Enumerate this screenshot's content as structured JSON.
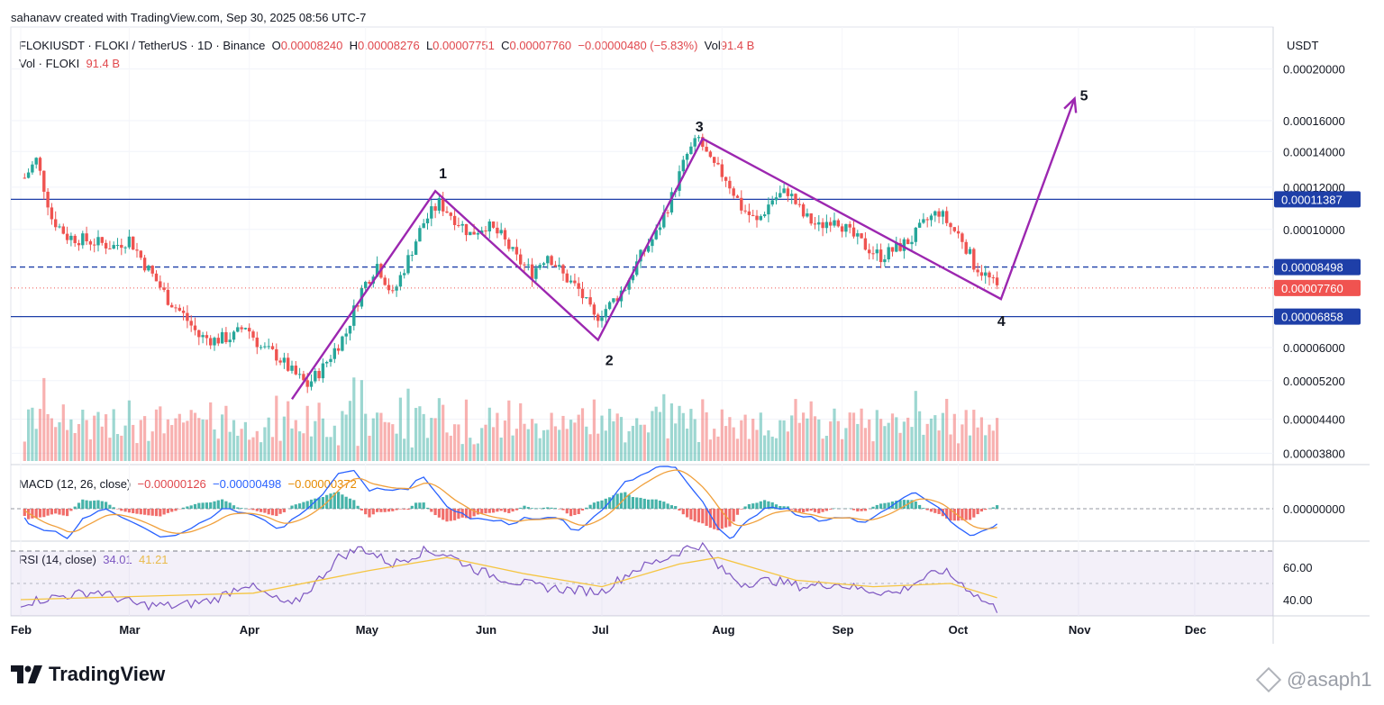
{
  "credit": "sahanavv created with TradingView.com, Sep 30, 2025 08:56 UTC-7",
  "legend": {
    "symbol": "FLOKIUSDT · FLOKI / TetherUS · 1D · Binance",
    "o_label": "O",
    "o_value": "0.00008240",
    "h_label": "H",
    "h_value": "0.00008276",
    "l_label": "L",
    "l_value": "0.00007751",
    "c_label": "C",
    "c_value": "0.00007760",
    "change": "−0.00000480 (−5.83%)",
    "vol_label": "Vol",
    "vol_value": "91.4 B",
    "vol_line_label": "Vol · FLOKI",
    "vol_line_value": "91.4 B"
  },
  "macd": {
    "label": "MACD (12, 26, close)",
    "hist": "−0.00000126",
    "macd": "−0.00000498",
    "signal": "−0.00000372"
  },
  "rsi": {
    "label": "RSI (14, close)",
    "value": "34.01",
    "ma": "41.21"
  },
  "axis_unit": "USDT",
  "brand": "TradingView",
  "watermark": "@asaph1",
  "colors": {
    "up": "#26a69a",
    "down": "#ef5350",
    "wave": "#9c27b0",
    "level": "#1e3fa8",
    "last": "#f05350",
    "macd": "#2962ff",
    "signal": "#f0a03c",
    "rsi": "#7e57c2",
    "rsi_ma": "#f5c542"
  },
  "chart_data": {
    "type": "candlestick",
    "title": "FLOKIUSDT · FLOKI / TetherUS · 1D · Binance",
    "x_labels": [
      "Feb",
      "Mar",
      "Apr",
      "May",
      "Jun",
      "Jul",
      "Aug",
      "Sep",
      "Oct",
      "Nov",
      "Dec"
    ],
    "y_scale": "log",
    "y_ticks": [
      "0.00020000",
      "0.00016000",
      "0.00014000",
      "0.00012000",
      "0.00010000",
      "0.00006000",
      "0.00005200",
      "0.00004400",
      "0.00003800"
    ],
    "y_tick_values": [
      0.0002,
      0.00016,
      0.00014,
      0.00012,
      0.0001,
      6e-05,
      5.2e-05,
      4.4e-05,
      3.8e-05
    ],
    "levels": [
      {
        "value": 0.00011387,
        "label": "0.00011387",
        "style": "solid"
      },
      {
        "value": 8.498e-05,
        "label": "0.00008498",
        "style": "dashed"
      },
      {
        "value": 6.858e-05,
        "label": "0.00006858",
        "style": "solid"
      }
    ],
    "last_price": {
      "value": 7.76e-05,
      "label": "0.00007760"
    },
    "close_path": [
      [
        1,
        0.000125
      ],
      [
        4,
        0.000135
      ],
      [
        8,
        0.000105
      ],
      [
        12,
        9.7e-05
      ],
      [
        18,
        9.5e-05
      ],
      [
        24,
        9.3e-05
      ],
      [
        28,
        9.6e-05
      ],
      [
        32,
        8.6e-05
      ],
      [
        38,
        7.4e-05
      ],
      [
        42,
        6.9e-05
      ],
      [
        46,
        6.3e-05
      ],
      [
        50,
        6.2e-05
      ],
      [
        55,
        6.3e-05
      ],
      [
        58,
        6.6e-05
      ],
      [
        62,
        6e-05
      ],
      [
        66,
        5.8e-05
      ],
      [
        70,
        5.4e-05
      ],
      [
        74,
        5.1e-05
      ],
      [
        78,
        5.5e-05
      ],
      [
        84,
        6.4e-05
      ],
      [
        88,
        7.7e-05
      ],
      [
        92,
        8.6e-05
      ],
      [
        96,
        7.5e-05
      ],
      [
        100,
        8.8e-05
      ],
      [
        104,
        0.000103
      ],
      [
        108,
        0.000112
      ],
      [
        112,
        0.000105
      ],
      [
        116,
        9.8e-05
      ],
      [
        120,
        0.000102
      ],
      [
        124,
        9.7e-05
      ],
      [
        128,
        8.8e-05
      ],
      [
        132,
        8.3e-05
      ],
      [
        136,
        9e-05
      ],
      [
        140,
        8.2e-05
      ],
      [
        144,
        7.7e-05
      ],
      [
        148,
        6.8e-05
      ],
      [
        152,
        7.2e-05
      ],
      [
        156,
        7.8e-05
      ],
      [
        160,
        8.9e-05
      ],
      [
        164,
        9.8e-05
      ],
      [
        168,
        0.000115
      ],
      [
        172,
        0.000138
      ],
      [
        175,
        0.000148
      ],
      [
        178,
        0.000133
      ],
      [
        182,
        0.000125
      ],
      [
        186,
        0.00011
      ],
      [
        190,
        0.000103
      ],
      [
        194,
        0.000114
      ],
      [
        198,
        0.000118
      ],
      [
        202,
        0.000106
      ],
      [
        206,
        0.000101
      ],
      [
        210,
        0.000106
      ],
      [
        214,
        9.8e-05
      ],
      [
        218,
        9.3e-05
      ],
      [
        222,
        8.9e-05
      ],
      [
        226,
        9.2e-05
      ],
      [
        230,
        9.6e-05
      ],
      [
        234,
        0.000104
      ],
      [
        237,
        0.000108
      ],
      [
        240,
        0.000101
      ],
      [
        243,
        9.6e-05
      ],
      [
        246,
        8.6e-05
      ],
      [
        249,
        8.2e-05
      ],
      [
        252,
        7.76e-05
      ]
    ],
    "x_label_days": [
      0,
      28,
      59,
      89,
      120,
      150,
      181,
      212,
      242,
      273,
      303
    ],
    "last_day": 252,
    "wave_labels": [
      "1",
      "2",
      "3",
      "4",
      "5"
    ],
    "wave_points": [
      {
        "day": 70,
        "value": 4.8e-05
      },
      {
        "day": 107,
        "value": 0.000118
      },
      {
        "day": 149,
        "value": 6.2e-05
      },
      {
        "day": 176,
        "value": 0.000148
      },
      {
        "day": 253,
        "value": 7.4e-05
      },
      {
        "day": 272,
        "value": 0.000176
      }
    ],
    "volume_axis": "relative",
    "macd_axis_tick": "0.00000000",
    "rsi_ticks": [
      "60.00",
      "40.00"
    ],
    "rsi_tick_values": [
      60,
      40
    ],
    "rsi_band": [
      30,
      70
    ],
    "rsi_path": [
      [
        0,
        38
      ],
      [
        10,
        42
      ],
      [
        20,
        45
      ],
      [
        30,
        37
      ],
      [
        40,
        36
      ],
      [
        50,
        40
      ],
      [
        58,
        50
      ],
      [
        64,
        42
      ],
      [
        70,
        36
      ],
      [
        76,
        50
      ],
      [
        82,
        66
      ],
      [
        88,
        72
      ],
      [
        96,
        62
      ],
      [
        104,
        70
      ],
      [
        110,
        68
      ],
      [
        118,
        58
      ],
      [
        126,
        52
      ],
      [
        134,
        48
      ],
      [
        142,
        46
      ],
      [
        150,
        45
      ],
      [
        158,
        58
      ],
      [
        166,
        65
      ],
      [
        172,
        72
      ],
      [
        176,
        74
      ],
      [
        180,
        60
      ],
      [
        186,
        50
      ],
      [
        194,
        52
      ],
      [
        202,
        48
      ],
      [
        210,
        50
      ],
      [
        218,
        46
      ],
      [
        226,
        44
      ],
      [
        232,
        52
      ],
      [
        238,
        58
      ],
      [
        244,
        48
      ],
      [
        248,
        40
      ],
      [
        252,
        34.01
      ]
    ],
    "rsi_ma_path": [
      [
        0,
        40
      ],
      [
        30,
        42
      ],
      [
        60,
        44
      ],
      [
        90,
        58
      ],
      [
        110,
        66
      ],
      [
        130,
        56
      ],
      [
        150,
        48
      ],
      [
        170,
        62
      ],
      [
        180,
        66
      ],
      [
        200,
        52
      ],
      [
        220,
        48
      ],
      [
        240,
        50
      ],
      [
        252,
        41.21
      ]
    ]
  }
}
